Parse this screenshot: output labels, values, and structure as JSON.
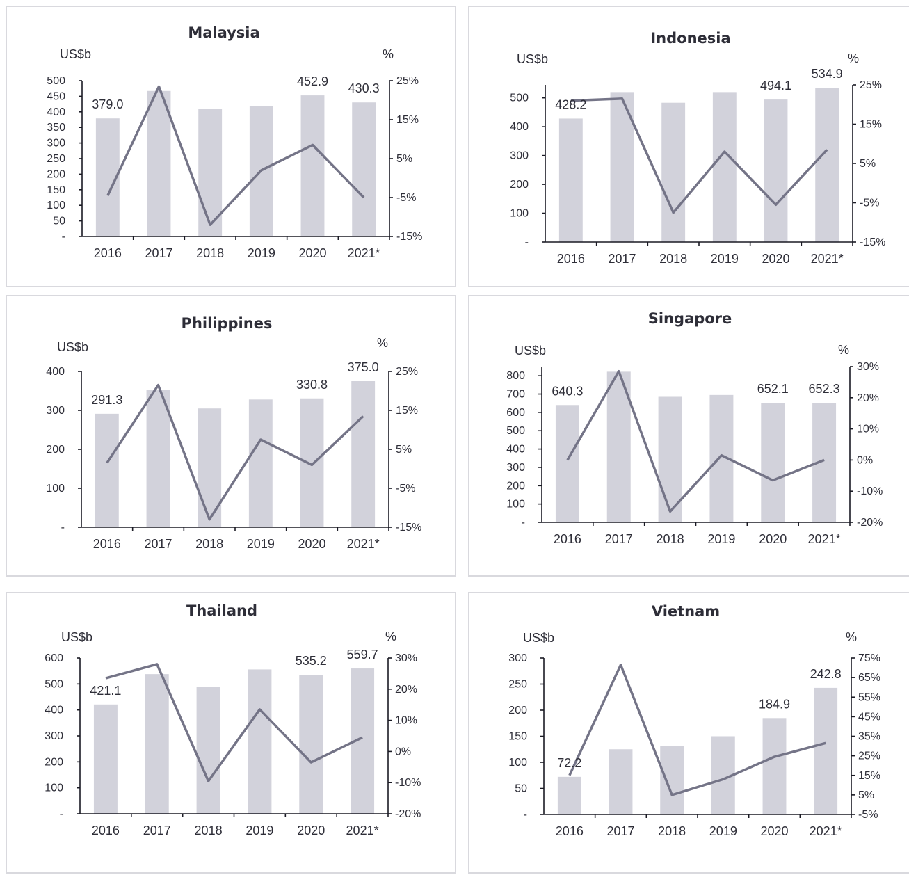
{
  "chart_data": [
    {
      "type": "bar+line",
      "title": "Malaysia",
      "y_label": "US$b",
      "y2_label": "%",
      "categories": [
        "2016",
        "2017",
        "2018",
        "2019",
        "2020",
        "2021*"
      ],
      "bar_values": [
        379.0,
        467,
        410,
        418,
        452.9,
        430.3
      ],
      "line_values": [
        -4.5,
        23.5,
        -12,
        2,
        8.5,
        -5
      ],
      "data_labels": [
        "379.0",
        "",
        "",
        "",
        "452.9",
        "430.3"
      ],
      "y_ticks": [
        "-",
        "50",
        "100",
        "150",
        "200",
        "250",
        "300",
        "350",
        "400",
        "450",
        "500"
      ],
      "y_tick_values": [
        0,
        50,
        100,
        150,
        200,
        250,
        300,
        350,
        400,
        450,
        500
      ],
      "ylim": [
        0,
        500
      ],
      "y2_ticks": [
        "-15%",
        "-5%",
        "5%",
        "15%",
        "25%"
      ],
      "y2_tick_values": [
        -15,
        -5,
        5,
        15,
        25
      ],
      "y2lim": [
        -15,
        25
      ]
    },
    {
      "type": "bar+line",
      "title": "Indonesia",
      "y_label": "US$b",
      "y2_label": "%",
      "categories": [
        "2016",
        "2017",
        "2018",
        "2019",
        "2020",
        "2021*"
      ],
      "bar_values": [
        428.2,
        520,
        483,
        520,
        494.1,
        534.9
      ],
      "line_values": [
        21,
        21.5,
        -7.5,
        8,
        -5.5,
        8.5
      ],
      "data_labels": [
        "428.2",
        "",
        "",
        "",
        "494.1",
        "534.9"
      ],
      "y_ticks": [
        "-",
        "100",
        "200",
        "300",
        "400",
        "500"
      ],
      "y_tick_values": [
        0,
        100,
        200,
        300,
        400,
        500
      ],
      "ylim": [
        0,
        545
      ],
      "y2_ticks": [
        "-15%",
        "-5%",
        "5%",
        "15%",
        "25%"
      ],
      "y2_tick_values": [
        -15,
        -5,
        5,
        15,
        25
      ],
      "y2lim": [
        -15,
        25
      ]
    },
    {
      "type": "bar+line",
      "title": "Philippines",
      "y_label": "US$b",
      "y2_label": "%",
      "categories": [
        "2016",
        "2017",
        "2018",
        "2019",
        "2020",
        "2021*"
      ],
      "bar_values": [
        291.3,
        352,
        305,
        328,
        330.8,
        375.0
      ],
      "line_values": [
        1.5,
        21.5,
        -13,
        7.5,
        1,
        13.5
      ],
      "data_labels": [
        "291.3",
        "",
        "",
        "",
        "330.8",
        "375.0"
      ],
      "y_ticks": [
        "-",
        "100",
        "200",
        "300",
        "400"
      ],
      "y_tick_values": [
        0,
        100,
        200,
        300,
        400
      ],
      "ylim": [
        0,
        400
      ],
      "y2_ticks": [
        "-15%",
        "-5%",
        "5%",
        "15%",
        "25%"
      ],
      "y2_tick_values": [
        -15,
        -5,
        5,
        15,
        25
      ],
      "y2lim": [
        -15,
        25
      ]
    },
    {
      "type": "bar+line",
      "title": "Singapore",
      "y_label": "US$b",
      "y2_label": "%",
      "categories": [
        "2016",
        "2017",
        "2018",
        "2019",
        "2020",
        "2021*"
      ],
      "bar_values": [
        640.3,
        822,
        685,
        695,
        652.1,
        652.3
      ],
      "line_values": [
        0,
        28.5,
        -16.5,
        1.5,
        -6.5,
        0
      ],
      "data_labels": [
        "640.3",
        "",
        "",
        "",
        "652.1",
        "652.3"
      ],
      "y_ticks": [
        "-",
        "100",
        "200",
        "300",
        "400",
        "500",
        "600",
        "700",
        "800"
      ],
      "y_tick_values": [
        0,
        100,
        200,
        300,
        400,
        500,
        600,
        700,
        800
      ],
      "ylim": [
        0,
        850
      ],
      "y2_ticks": [
        "-20%",
        "-10%",
        "0%",
        "10%",
        "20%",
        "30%"
      ],
      "y2_tick_values": [
        -20,
        -10,
        0,
        10,
        20,
        30
      ],
      "y2lim": [
        -20,
        30
      ]
    },
    {
      "type": "bar+line",
      "title": "Thailand",
      "y_label": "US$b",
      "y2_label": "%",
      "categories": [
        "2016",
        "2017",
        "2018",
        "2019",
        "2020",
        "2021*"
      ],
      "bar_values": [
        421.1,
        538,
        489,
        556,
        535.2,
        559.7
      ],
      "line_values": [
        23.5,
        28,
        -9.5,
        13.5,
        -3.5,
        4.5
      ],
      "data_labels": [
        "421.1",
        "",
        "",
        "",
        "535.2",
        "559.7"
      ],
      "y_ticks": [
        "-",
        "100",
        "200",
        "300",
        "400",
        "500",
        "600"
      ],
      "y_tick_values": [
        0,
        100,
        200,
        300,
        400,
        500,
        600
      ],
      "ylim": [
        0,
        600
      ],
      "y2_ticks": [
        "-20%",
        "-10%",
        "0%",
        "10%",
        "20%",
        "30%"
      ],
      "y2_tick_values": [
        -20,
        -10,
        0,
        10,
        20,
        30
      ],
      "y2lim": [
        -20,
        30
      ]
    },
    {
      "type": "bar+line",
      "title": "Vietnam",
      "y_label": "US$b",
      "y2_label": "%",
      "categories": [
        "2016",
        "2017",
        "2018",
        "2019",
        "2020",
        "2021*"
      ],
      "bar_values": [
        72.2,
        125,
        132,
        150,
        184.9,
        242.8
      ],
      "line_values": [
        15,
        71.5,
        5,
        13,
        24.5,
        31.5
      ],
      "data_labels": [
        "72.2",
        "",
        "",
        "",
        "184.9",
        "242.8"
      ],
      "y_ticks": [
        "-",
        "50",
        "100",
        "150",
        "200",
        "250",
        "300"
      ],
      "y_tick_values": [
        0,
        50,
        100,
        150,
        200,
        250,
        300
      ],
      "ylim": [
        0,
        300
      ],
      "y2_ticks": [
        "-5%",
        "5%",
        "15%",
        "25%",
        "35%",
        "45%",
        "55%",
        "65%",
        "75%"
      ],
      "y2_tick_values": [
        -5,
        5,
        15,
        25,
        35,
        45,
        55,
        65,
        75
      ],
      "y2lim": [
        -5,
        75
      ]
    }
  ]
}
